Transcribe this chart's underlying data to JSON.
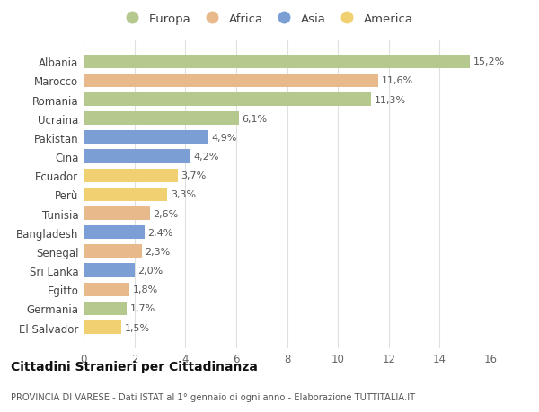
{
  "countries": [
    "Albania",
    "Marocco",
    "Romania",
    "Ucraina",
    "Pakistan",
    "Cina",
    "Ecuador",
    "Perù",
    "Tunisia",
    "Bangladesh",
    "Senegal",
    "Sri Lanka",
    "Egitto",
    "Germania",
    "El Salvador"
  ],
  "values": [
    15.2,
    11.6,
    11.3,
    6.1,
    4.9,
    4.2,
    3.7,
    3.3,
    2.6,
    2.4,
    2.3,
    2.0,
    1.8,
    1.7,
    1.5
  ],
  "labels": [
    "15,2%",
    "11,6%",
    "11,3%",
    "6,1%",
    "4,9%",
    "4,2%",
    "3,7%",
    "3,3%",
    "2,6%",
    "2,4%",
    "2,3%",
    "2,0%",
    "1,8%",
    "1,7%",
    "1,5%"
  ],
  "continents": [
    "Europa",
    "Africa",
    "Europa",
    "Europa",
    "Asia",
    "Asia",
    "America",
    "America",
    "Africa",
    "Asia",
    "Africa",
    "Asia",
    "Africa",
    "Europa",
    "America"
  ],
  "colors": {
    "Europa": "#b5c98e",
    "Africa": "#e8b98a",
    "Asia": "#7b9fd4",
    "America": "#f0d070"
  },
  "title": "Cittadini Stranieri per Cittadinanza",
  "subtitle": "PROVINCIA DI VARESE - Dati ISTAT al 1° gennaio di ogni anno - Elaborazione TUTTITALIA.IT",
  "xlim": [
    0,
    16
  ],
  "xticks": [
    0,
    2,
    4,
    6,
    8,
    10,
    12,
    14,
    16
  ],
  "background_color": "#ffffff",
  "grid_color": "#e0e0e0",
  "bar_height": 0.72,
  "legend_order": [
    "Europa",
    "Africa",
    "Asia",
    "America"
  ]
}
